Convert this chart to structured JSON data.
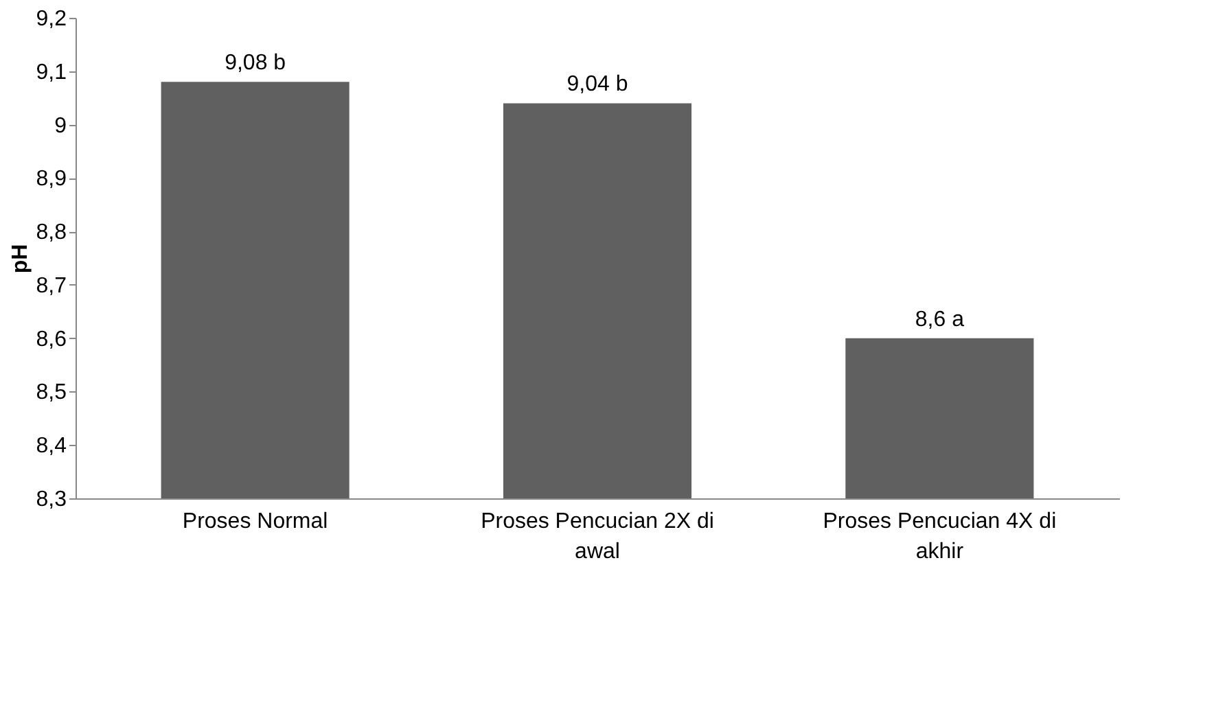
{
  "chart_data": {
    "type": "bar",
    "ylabel": "pH",
    "categories": [
      "Proses Normal",
      "Proses Pencucian 2X di awal",
      "Proses Pencucian 4X di akhir"
    ],
    "values": [
      9.08,
      9.04,
      8.6
    ],
    "value_labels": [
      "9,08 b",
      "9,04 b",
      "8,6 a"
    ],
    "color": "#606060",
    "ylim": [
      8.3,
      9.2
    ],
    "yticks": [
      {
        "value": 8.3,
        "label": "8,3"
      },
      {
        "value": 8.4,
        "label": "8,4"
      },
      {
        "value": 8.5,
        "label": "8,5"
      },
      {
        "value": 8.6,
        "label": "8,6"
      },
      {
        "value": 8.7,
        "label": "8,7"
      },
      {
        "value": 8.8,
        "label": "8,8"
      },
      {
        "value": 8.9,
        "label": "8,9"
      },
      9,
      {
        "value": 9.1,
        "label": "9,1"
      },
      {
        "value": 9.2,
        "label": "9,2"
      }
    ],
    "grid": false
  }
}
